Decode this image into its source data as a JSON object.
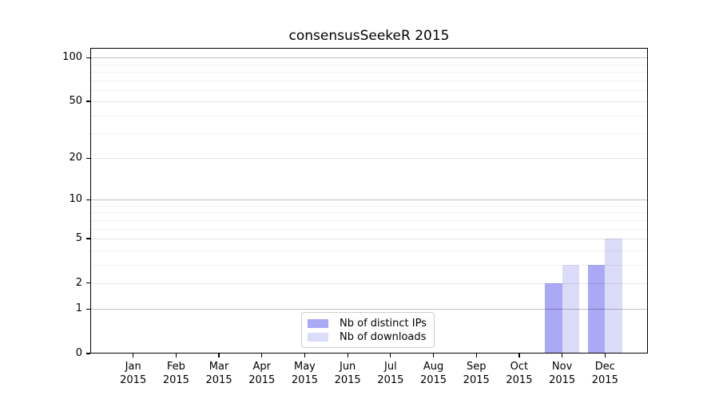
{
  "figure": {
    "background": "#ffffff"
  },
  "chart_data": {
    "type": "bar",
    "title": "consensusSeekeR 2015",
    "categories": [
      "Jan",
      "Feb",
      "Mar",
      "Apr",
      "May",
      "Jun",
      "Jul",
      "Aug",
      "Sep",
      "Oct",
      "Nov",
      "Dec"
    ],
    "category_year": "2015",
    "series": [
      {
        "name": "Nb of distinct IPs",
        "color": "#a9a9f6",
        "values": [
          0,
          0,
          0,
          0,
          0,
          0,
          0,
          0,
          0,
          0,
          2,
          3
        ]
      },
      {
        "name": "Nb of downloads",
        "color": "#dbdbfa",
        "values": [
          0,
          0,
          0,
          0,
          0,
          0,
          0,
          0,
          0,
          0,
          3,
          5
        ]
      }
    ],
    "y_axis": {
      "scale": "log1p",
      "ticks": [
        0,
        1,
        2,
        5,
        10,
        20,
        50,
        100
      ],
      "decade_ticks": [
        1,
        10,
        100
      ],
      "minor_ticks": [
        3,
        4,
        6,
        7,
        8,
        9,
        30,
        40,
        60,
        70,
        80,
        90
      ],
      "range": [
        0,
        100
      ]
    },
    "xlabel": "",
    "ylabel": "",
    "grid": true,
    "legend": {
      "position": "lower center",
      "entries": [
        "Nb of distinct IPs",
        "Nb of downloads"
      ]
    }
  }
}
